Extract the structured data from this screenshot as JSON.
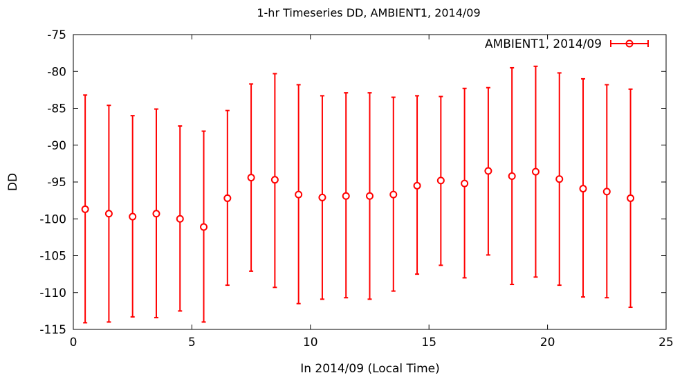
{
  "chart_data": {
    "type": "scatter",
    "title": "1-hr Timeseries DD, AMBIENT1, 2014/09",
    "xlabel": "In 2014/09 (Local Time)",
    "ylabel": "DD",
    "xlim": [
      0,
      25
    ],
    "ylim": [
      -115,
      -75
    ],
    "xticks": [
      0,
      5,
      10,
      15,
      20,
      25
    ],
    "yticks": [
      -75,
      -80,
      -85,
      -90,
      -95,
      -100,
      -105,
      -110,
      -115
    ],
    "grid": false,
    "legend_position": "top-right",
    "series": [
      {
        "name": "AMBIENT1, 2014/09",
        "color": "#ff0000",
        "marker": "circle",
        "error_bars": true,
        "points": [
          {
            "x": 0.5,
            "y": -98.7,
            "low": -114.1,
            "high": -83.2
          },
          {
            "x": 1.5,
            "y": -99.3,
            "low": -114.0,
            "high": -84.6
          },
          {
            "x": 2.5,
            "y": -99.7,
            "low": -113.3,
            "high": -86.0
          },
          {
            "x": 3.5,
            "y": -99.3,
            "low": -113.4,
            "high": -85.1
          },
          {
            "x": 4.5,
            "y": -100.0,
            "low": -112.5,
            "high": -87.4
          },
          {
            "x": 5.5,
            "y": -101.1,
            "low": -114.0,
            "high": -88.1
          },
          {
            "x": 6.5,
            "y": -97.2,
            "low": -109.0,
            "high": -85.3
          },
          {
            "x": 7.5,
            "y": -94.4,
            "low": -107.1,
            "high": -81.7
          },
          {
            "x": 8.5,
            "y": -94.7,
            "low": -109.3,
            "high": -80.3
          },
          {
            "x": 9.5,
            "y": -96.7,
            "low": -111.5,
            "high": -81.8
          },
          {
            "x": 10.5,
            "y": -97.1,
            "low": -110.9,
            "high": -83.3
          },
          {
            "x": 11.5,
            "y": -96.9,
            "low": -110.7,
            "high": -82.9
          },
          {
            "x": 12.5,
            "y": -96.9,
            "low": -110.9,
            "high": -82.9
          },
          {
            "x": 13.5,
            "y": -96.7,
            "low": -109.8,
            "high": -83.5
          },
          {
            "x": 14.5,
            "y": -95.5,
            "low": -107.5,
            "high": -83.3
          },
          {
            "x": 15.5,
            "y": -94.8,
            "low": -106.3,
            "high": -83.4
          },
          {
            "x": 16.5,
            "y": -95.2,
            "low": -108.0,
            "high": -82.3
          },
          {
            "x": 17.5,
            "y": -93.5,
            "low": -104.9,
            "high": -82.2
          },
          {
            "x": 18.5,
            "y": -94.2,
            "low": -108.9,
            "high": -79.5
          },
          {
            "x": 19.5,
            "y": -93.6,
            "low": -107.9,
            "high": -79.3
          },
          {
            "x": 20.5,
            "y": -94.6,
            "low": -109.0,
            "high": -80.2
          },
          {
            "x": 21.5,
            "y": -95.9,
            "low": -110.6,
            "high": -81.0
          },
          {
            "x": 22.5,
            "y": -96.3,
            "low": -110.7,
            "high": -81.8
          },
          {
            "x": 23.5,
            "y": -97.2,
            "low": -112.0,
            "high": -82.4
          }
        ]
      }
    ]
  }
}
